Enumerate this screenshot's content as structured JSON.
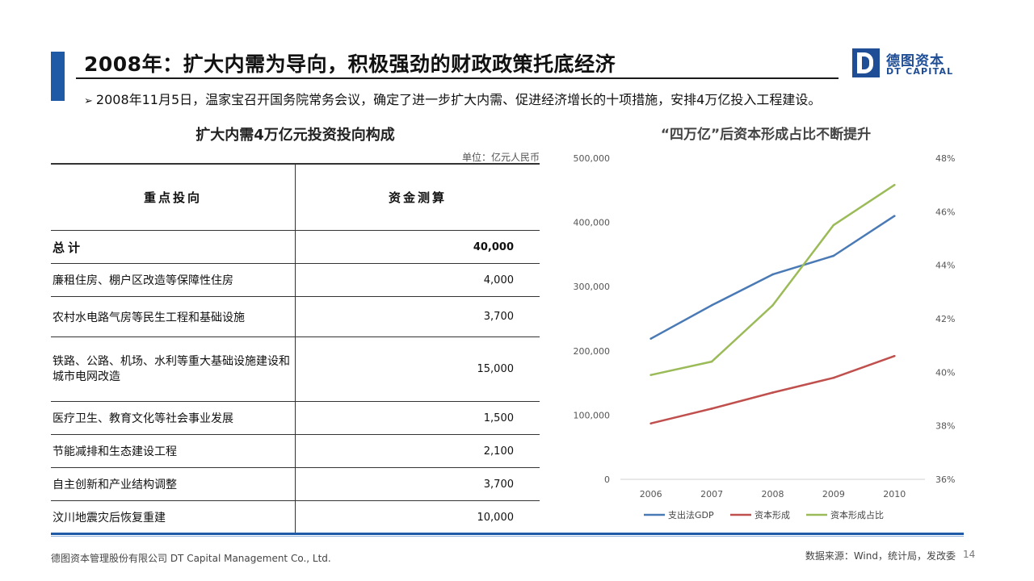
{
  "header": {
    "title": "2008年：扩大内需为导向，积极强劲的财政政策托底经济",
    "bullet": "2008年11月5日，温家宝召开国务院常务会议，确定了进一步扩大内需、促进经济增长的十项措施，安排4万亿投入工程建设。",
    "bullet_icon": "arrow-bullet-icon"
  },
  "logo": {
    "cn": "德图资本",
    "en": "DT CAPITAL"
  },
  "table": {
    "title": "扩大内需4万亿元投资投向构成",
    "unit": "单位：亿元人民币",
    "col1": "重点投向",
    "col2": "资金测算",
    "total_label": "总计",
    "total_value": "40,000",
    "rows": [
      {
        "label": "廉租住房、棚户区改造等保障性住房",
        "value": "4,000"
      },
      {
        "label": "农村水电路气房等民生工程和基础设施",
        "value": "3,700"
      },
      {
        "label": "铁路、公路、机场、水利等重大基础设施建设和城市电网改造",
        "value": "15,000"
      },
      {
        "label": "医疗卫生、教育文化等社会事业发展",
        "value": "1,500"
      },
      {
        "label": "节能减排和生态建设工程",
        "value": "2,100"
      },
      {
        "label": "自主创新和产业结构调整",
        "value": "3,700"
      },
      {
        "label": "汶川地震灾后恢复重建",
        "value": "10,000"
      }
    ]
  },
  "chart_data": {
    "type": "line",
    "title": "“四万亿”后资本形成占比不断提升",
    "x": [
      "2006",
      "2007",
      "2008",
      "2009",
      "2010"
    ],
    "y_left_ticks": [
      "0",
      "100,000",
      "200,000",
      "300,000",
      "400,000",
      "500,000"
    ],
    "y_right_ticks": [
      "36%",
      "38%",
      "40%",
      "42%",
      "44%",
      "46%",
      "48%"
    ],
    "ylim_left": [
      0,
      500000
    ],
    "ylim_right": [
      36,
      48
    ],
    "grid": false,
    "legend_position": "bottom",
    "series": [
      {
        "name": "支出法GDP",
        "axis": "left",
        "color": "#4a7ab5",
        "values": [
          219000,
          271000,
          319000,
          348000,
          410000
        ]
      },
      {
        "name": "资本形成",
        "axis": "left",
        "color": "#c0504d",
        "values": [
          87000,
          110000,
          135000,
          158000,
          192000
        ]
      },
      {
        "name": "资本形成占比",
        "axis": "right",
        "color": "#9bbb59",
        "values": [
          39.9,
          40.4,
          42.5,
          45.5,
          47.0
        ]
      }
    ]
  },
  "footer": {
    "company": "德图资本管理股份有限公司 DT Capital Management Co., Ltd.",
    "source": "数据来源：Wind，统计局，发改委",
    "page": "14"
  }
}
